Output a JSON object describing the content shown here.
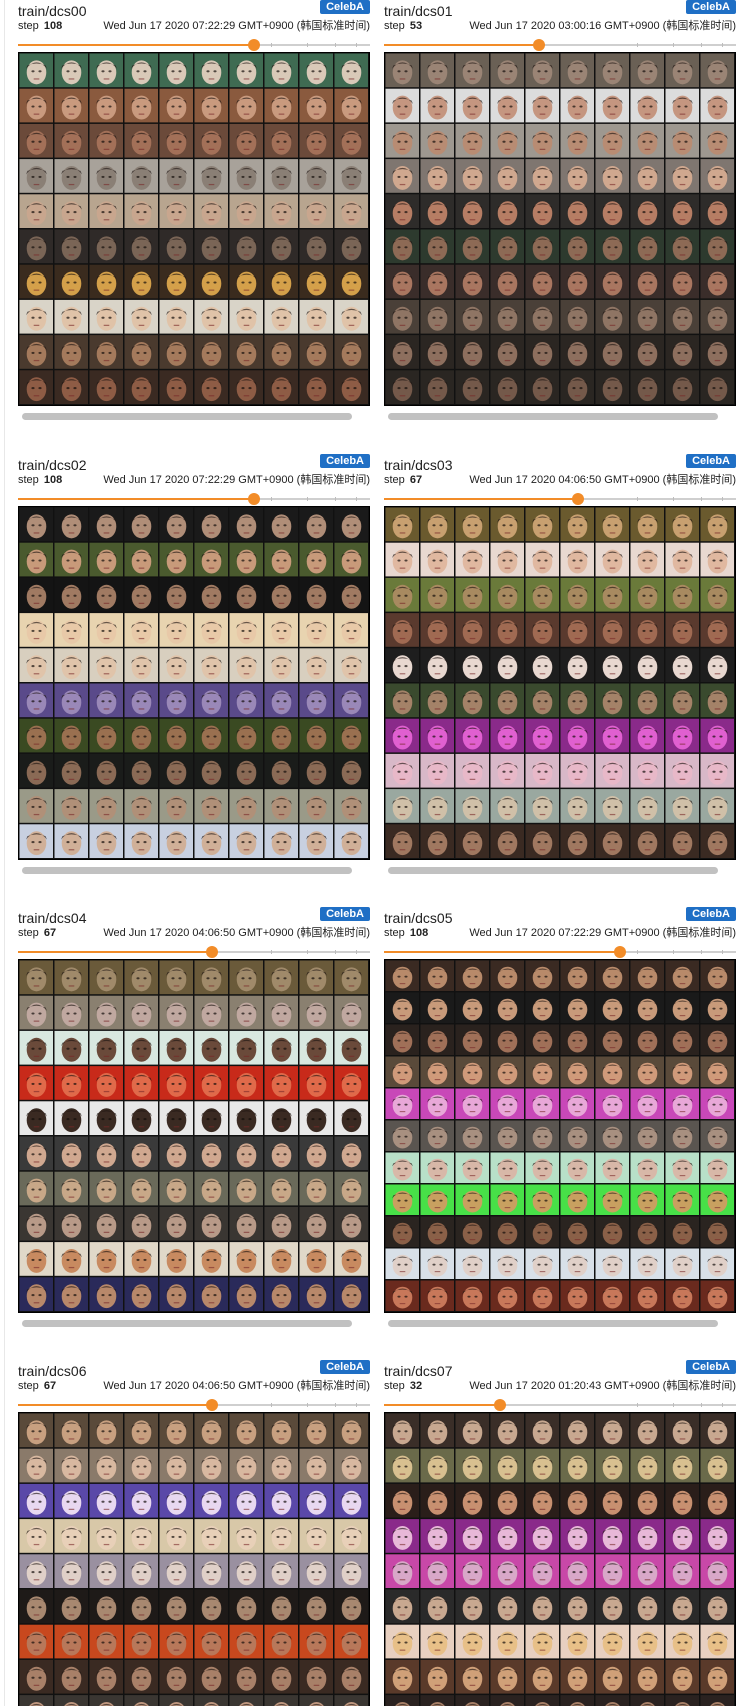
{
  "cards": [
    {
      "title": "train/dcs00",
      "tag": "CelebA",
      "step_label": "step",
      "step": "108",
      "timestamp": "Wed Jun 17 2020 07:22:29 GMT+0900 (韩国标准时间)",
      "slider_fraction": 0.67,
      "row_colors": [
        "#3f6b52",
        "#8a5a3e",
        "#6b4a3a",
        "#a8a29a",
        "#b8a58f",
        "#2f2a28",
        "#3a2b1e",
        "#d9d4c8",
        "#4a3a2e",
        "#3a2a22"
      ],
      "face_tones": [
        "#d9c9b8",
        "#c99a7e",
        "#a37058",
        "#8a7f75",
        "#c8a68e",
        "#7a6556",
        "#d4a04a",
        "#e0c3a8",
        "#a47a5c",
        "#8e5c45"
      ]
    },
    {
      "title": "train/dcs01",
      "tag": "CelebA",
      "step_label": "step",
      "step": "53",
      "timestamp": "Wed Jun 17 2020 03:00:16 GMT+0900 (韩国标准时间)",
      "slider_fraction": 0.44,
      "row_colors": [
        "#6a6055",
        "#dcdcdc",
        "#9e9890",
        "#7f7670",
        "#2e2c2a",
        "#2d3a2e",
        "#3a2d2a",
        "#4a4038",
        "#2b2622",
        "#2a2622"
      ],
      "face_tones": [
        "#9a8475",
        "#c59680",
        "#b88c73",
        "#d0a88f",
        "#b67d64",
        "#8d6a55",
        "#a97660",
        "#8f7564",
        "#8d6f5e",
        "#74594a"
      ]
    },
    {
      "title": "train/dcs02",
      "tag": "CelebA",
      "step_label": "step",
      "step": "108",
      "timestamp": "Wed Jun 17 2020 07:22:29 GMT+0900 (韩国标准时间)",
      "slider_fraction": 0.67,
      "row_colors": [
        "#1a1a1a",
        "#4a5a2e",
        "#141414",
        "#e8d4b0",
        "#d8cfbf",
        "#5a4a8a",
        "#3a4a22",
        "#1a1c1a",
        "#9a9a88",
        "#c8d0e0"
      ],
      "face_tones": [
        "#b08e78",
        "#c89a7a",
        "#a07a62",
        "#e8c9a8",
        "#e0c4aa",
        "#9a88b8",
        "#9a7050",
        "#8a6a55",
        "#b09078",
        "#d0b098"
      ]
    },
    {
      "title": "train/dcs03",
      "tag": "CelebA",
      "step_label": "step",
      "step": "67",
      "timestamp": "Wed Jun 17 2020 04:06:50 GMT+0900 (韩国标准时间)",
      "slider_fraction": 0.55,
      "row_colors": [
        "#6a5a2e",
        "#e8d8d0",
        "#6a7a3a",
        "#5a3a2e",
        "#1e1e1e",
        "#3a4a2e",
        "#8a2a8a",
        "#d8b8c8",
        "#9aa8a0",
        "#3a2a22"
      ],
      "face_tones": [
        "#c8a070",
        "#e0b8a0",
        "#a88a60",
        "#a06a52",
        "#e8d8d0",
        "#a48268",
        "#e060d0",
        "#e8b8c8",
        "#d0c0a8",
        "#a07860"
      ]
    },
    {
      "title": "train/dcs04",
      "tag": "CelebA",
      "step_label": "step",
      "step": "67",
      "timestamp": "Wed Jun 17 2020 04:06:50 GMT+0900 (韩国标准时间)",
      "slider_fraction": 0.55,
      "row_colors": [
        "#6a5a3a",
        "#8a8070",
        "#d8e8e0",
        "#c82a1a",
        "#e8e8e8",
        "#3a3a3a",
        "#6a6a5a",
        "#3a3632",
        "#e0d8c8",
        "#2a2a5a"
      ],
      "face_tones": [
        "#a08a6a",
        "#c0a8a0",
        "#6a4a3a",
        "#e06a4a",
        "#3a2a22",
        "#d0a890",
        "#c8a888",
        "#b89a88",
        "#c88a60",
        "#b8886a"
      ]
    },
    {
      "title": "train/dcs05",
      "tag": "CelebA",
      "step_label": "step",
      "step": "108",
      "timestamp": "Wed Jun 17 2020 07:22:29 GMT+0900 (韩国标准时间)",
      "slider_fraction": 0.67,
      "row_colors": [
        "#3a2a22",
        "#1a1a1a",
        "#2a221e",
        "#5a4a3a",
        "#c848b8",
        "#5a5550",
        "#b8e0c8",
        "#48e048",
        "#2a2420",
        "#d8e0e8",
        "#6a2a1e"
      ],
      "face_tones": [
        "#b88a6a",
        "#c89a7a",
        "#a07058",
        "#d09a7a",
        "#e8a8d8",
        "#a89080",
        "#d8b8a8",
        "#c8a060",
        "#8a6048",
        "#e0d0c8",
        "#c8785a"
      ]
    },
    {
      "title": "train/dcs06",
      "tag": "CelebA",
      "step_label": "step",
      "step": "67",
      "timestamp": "Wed Jun 17 2020 04:06:50 GMT+0900 (韩国标准时间)",
      "slider_fraction": 0.55,
      "row_colors": [
        "#5a4a3a",
        "#8a7a6a",
        "#5a48a8",
        "#d8c8a8",
        "#9a90a0",
        "#1e1a18",
        "#c8481e",
        "#3a2a22",
        "#3a3632",
        "#5a3a6a"
      ],
      "face_tones": [
        "#c8a080",
        "#d8b8a0",
        "#e8d8f0",
        "#e8d0b8",
        "#e0d0c8",
        "#a88870",
        "#b8785a",
        "#a88068",
        "#c09880",
        "#c8a0a8"
      ]
    },
    {
      "title": "train/dcs07",
      "tag": "CelebA",
      "step_label": "step",
      "step": "32",
      "timestamp": "Wed Jun 17 2020 01:20:43 GMT+0900 (韩国标准时间)",
      "slider_fraction": 0.33,
      "row_colors": [
        "#3a2e28",
        "#6a6a4a",
        "#2a1e1a",
        "#8a2a8a",
        "#c848a8",
        "#2a2a2a",
        "#e8d0c0",
        "#5a3a2a",
        "#2a2220",
        "#3a3a3a"
      ],
      "face_tones": [
        "#c8a890",
        "#d8c090",
        "#c89070",
        "#e8b8d8",
        "#d8a8c8",
        "#c8a890",
        "#e8c088",
        "#d0a078",
        "#a88068",
        "#b09888"
      ]
    }
  ]
}
